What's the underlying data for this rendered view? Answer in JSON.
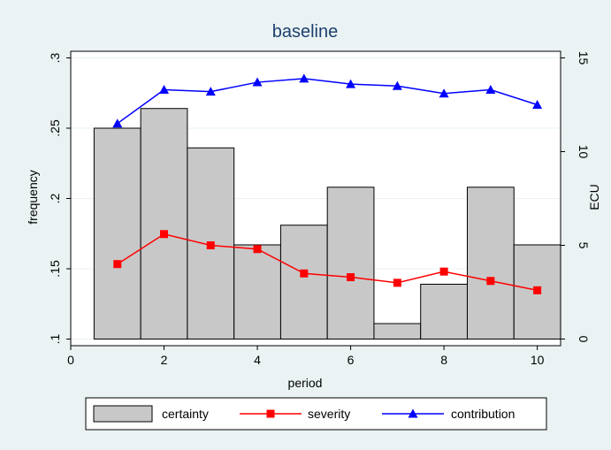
{
  "chart_data": {
    "type": "bar",
    "title": "baseline",
    "xlabel": "period",
    "ylabel_left": "frequency",
    "ylabel_right": "ECU",
    "xlim": [
      0,
      10.5
    ],
    "ylim_left": [
      0.1,
      0.3
    ],
    "ylim_right": [
      0,
      15
    ],
    "x_ticks": [
      0,
      2,
      4,
      6,
      8,
      10
    ],
    "y_ticks_left": [
      0.1,
      0.15,
      0.2,
      0.25,
      0.3
    ],
    "y_ticks_left_labels": [
      ".1",
      ".15",
      ".2",
      ".25",
      ".3"
    ],
    "y_ticks_right": [
      0,
      5,
      10,
      15
    ],
    "grid": true,
    "legend_position": "bottom",
    "series": [
      {
        "name": "certainty",
        "kind": "bar",
        "axis": "left",
        "color": "#c8c8c8",
        "x": [
          1,
          2,
          3,
          4,
          5,
          6,
          7,
          8,
          9,
          10
        ],
        "values": [
          0.25,
          0.264,
          0.236,
          0.167,
          0.181,
          0.208,
          0.111,
          0.139,
          0.208,
          0.167
        ]
      },
      {
        "name": "severity",
        "kind": "line",
        "marker": "square",
        "axis": "right",
        "color": "#ff0000",
        "x": [
          1,
          2,
          3,
          4,
          5,
          6,
          7,
          8,
          9,
          10
        ],
        "values": [
          4.0,
          5.6,
          5.0,
          4.8,
          3.5,
          3.3,
          3.0,
          3.6,
          3.1,
          2.6
        ]
      },
      {
        "name": "contribution",
        "kind": "line",
        "marker": "triangle",
        "axis": "right",
        "color": "#0000ff",
        "x": [
          1,
          2,
          3,
          4,
          5,
          6,
          7,
          8,
          9,
          10
        ],
        "values": [
          11.5,
          13.3,
          13.2,
          13.7,
          13.9,
          13.6,
          13.5,
          13.1,
          13.3,
          12.5
        ]
      }
    ]
  }
}
